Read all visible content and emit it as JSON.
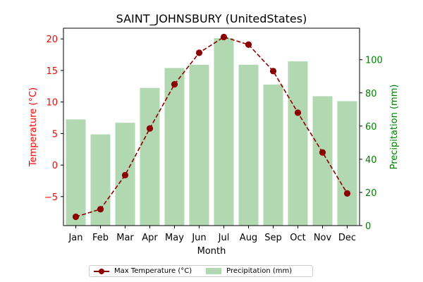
{
  "chart_data": {
    "type": "bar+line",
    "title": "SAINT_JOHNSBURY (UnitedStates)",
    "xlabel": "Month",
    "categories": [
      "Jan",
      "Feb",
      "Mar",
      "Apr",
      "May",
      "Jun",
      "Jul",
      "Aug",
      "Sep",
      "Oct",
      "Nov",
      "Dec"
    ],
    "left_axis": {
      "label": "Temperature (°C)",
      "color": "#ff0000",
      "ylim": [
        -9.6,
        21.7
      ],
      "ticks": [
        -5,
        0,
        5,
        10,
        15,
        20
      ],
      "tick_labels": [
        "−5",
        "0",
        "5",
        "10",
        "15",
        "20"
      ]
    },
    "right_axis": {
      "label": "Precipitation (mm)",
      "color": "#008000",
      "ylim": [
        0,
        119
      ],
      "ticks": [
        0,
        20,
        40,
        60,
        80,
        100
      ],
      "tick_labels": [
        "0",
        "20",
        "40",
        "60",
        "80",
        "100"
      ]
    },
    "series": [
      {
        "name": "Max Temperature (°C)",
        "kind": "line",
        "axis": "left",
        "color": "#8b0000",
        "style": "dashed",
        "marker": "circle",
        "values": [
          -8.2,
          -7.0,
          -1.6,
          5.8,
          12.8,
          17.8,
          20.3,
          19.1,
          14.9,
          8.3,
          2.0,
          -4.5
        ]
      },
      {
        "name": "Precipitation (mm)",
        "kind": "bar",
        "axis": "right",
        "color": "#b2d8b2",
        "values": [
          64,
          55,
          62,
          83,
          95,
          97,
          113,
          97,
          85,
          99,
          78,
          75
        ]
      }
    ],
    "legend": {
      "position": "bottom-center"
    },
    "grid": false
  }
}
